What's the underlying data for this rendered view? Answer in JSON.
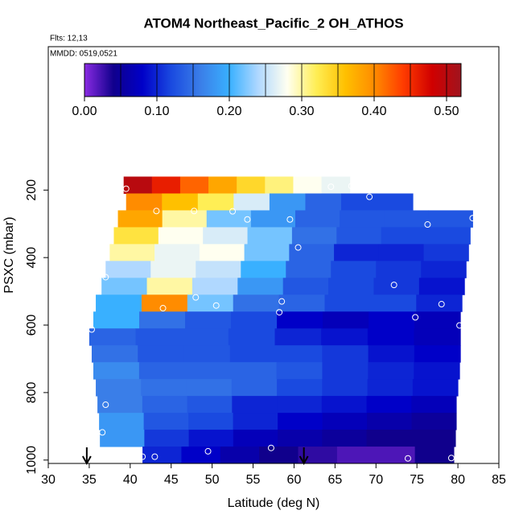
{
  "chart_data": {
    "type": "curtain",
    "title": "ATOM4 Northeast_Pacific_2 OH_ATHOS",
    "flights_note": "Flts: 12,13",
    "date_note": "MMDD: 0519,0521",
    "x_label": "Latitude (deg N)",
    "y_label": "PSXC (mbar)",
    "xlim": [
      30,
      85
    ],
    "xticks": [
      30,
      35,
      40,
      45,
      50,
      55,
      60,
      65,
      70,
      75,
      80,
      85
    ],
    "ylim": [
      1010,
      -225
    ],
    "yticks": [
      200,
      400,
      600,
      800,
      1000
    ],
    "colorbar": {
      "lim": [
        0,
        0.52
      ],
      "colors": [
        "#8a2be2",
        "#10008c",
        "#0000c8",
        "#1a4ae0",
        "#3a7ee8",
        "#39b0ff",
        "#b0d8ff",
        "#fffff0",
        "#ffee55",
        "#ffc000",
        "#ff8c00",
        "#ff3c00",
        "#d00000",
        "#a0141e"
      ],
      "ticks": [
        {
          "value": 0,
          "label": "0.00"
        },
        {
          "value": 0.1,
          "label": "0.10"
        },
        {
          "value": 0.2,
          "label": "0.20"
        },
        {
          "value": 0.3,
          "label": "0.30"
        },
        {
          "value": 0.4,
          "label": "0.40"
        },
        {
          "value": 0.5,
          "label": "0.50"
        }
      ],
      "lines": [
        0.05,
        0.1,
        0.15,
        0.2,
        0.25,
        0.3,
        0.35,
        0.4,
        0.45,
        0.5
      ]
    },
    "rows": [
      {
        "pressure": [
          160,
          210
        ],
        "lat": [
          39.2,
          66.8
        ],
        "values": [
          0.5,
          0.46,
          0.42,
          0.38,
          0.34,
          0.31,
          0.28,
          0.27
        ]
      },
      {
        "pressure": [
          210,
          260
        ],
        "lat": [
          39.5,
          74.5
        ],
        "values": [
          0.4,
          0.36,
          0.32,
          0.26,
          0.18,
          0.14,
          0.12,
          0.12
        ]
      },
      {
        "pressure": [
          260,
          310
        ],
        "lat": [
          38.5,
          81.8
        ],
        "values": [
          0.38,
          0.3,
          0.22,
          0.18,
          0.14,
          0.13,
          0.13,
          0.13
        ]
      },
      {
        "pressure": [
          310,
          360
        ],
        "lat": [
          38,
          81.5
        ],
        "values": [
          0.33,
          0.28,
          0.26,
          0.22,
          0.15,
          0.13,
          0.12,
          0.12
        ]
      },
      {
        "pressure": [
          360,
          410
        ],
        "lat": [
          37.5,
          81.3
        ],
        "values": [
          0.3,
          0.27,
          0.28,
          0.22,
          0.14,
          0.1,
          0.1,
          0.11
        ]
      },
      {
        "pressure": [
          410,
          460
        ],
        "lat": [
          37,
          81
        ],
        "values": [
          0.24,
          0.27,
          0.25,
          0.2,
          0.14,
          0.12,
          0.11,
          0.1
        ]
      },
      {
        "pressure": [
          460,
          510
        ],
        "lat": [
          36.5,
          80.8
        ],
        "values": [
          0.22,
          0.3,
          0.24,
          0.18,
          0.13,
          0.12,
          0.11,
          0.09
        ]
      },
      {
        "pressure": [
          510,
          560
        ],
        "lat": [
          35.8,
          80.5
        ],
        "values": [
          0.2,
          0.4,
          0.22,
          0.15,
          0.14,
          0.12,
          0.12,
          0.1
        ]
      },
      {
        "pressure": [
          560,
          610
        ],
        "lat": [
          35.5,
          80.3
        ],
        "values": [
          0.2,
          0.15,
          0.13,
          0.12,
          0.08,
          0.07,
          0.08,
          0.07
        ]
      },
      {
        "pressure": [
          610,
          660
        ],
        "lat": [
          35,
          80.3
        ],
        "values": [
          0.14,
          0.13,
          0.13,
          0.12,
          0.1,
          0.09,
          0.08,
          0.07
        ]
      },
      {
        "pressure": [
          660,
          710
        ],
        "lat": [
          35.3,
          80.3
        ],
        "values": [
          0.15,
          0.13,
          0.13,
          0.12,
          0.12,
          0.11,
          0.09,
          0.08
        ]
      },
      {
        "pressure": [
          710,
          760
        ],
        "lat": [
          35.5,
          80.2
        ],
        "values": [
          0.17,
          0.14,
          0.14,
          0.14,
          0.13,
          0.11,
          0.1,
          0.09
        ]
      },
      {
        "pressure": [
          760,
          810
        ],
        "lat": [
          35.8,
          80
        ],
        "values": [
          0.16,
          0.15,
          0.15,
          0.14,
          0.12,
          0.11,
          0.1,
          0.09
        ]
      },
      {
        "pressure": [
          810,
          860
        ],
        "lat": [
          36,
          79.8
        ],
        "values": [
          0.16,
          0.14,
          0.13,
          0.1,
          0.1,
          0.09,
          0.08,
          0.07
        ]
      },
      {
        "pressure": [
          860,
          910
        ],
        "lat": [
          36.2,
          79.8
        ],
        "values": [
          0.18,
          0.13,
          0.12,
          0.1,
          0.08,
          0.07,
          0.06,
          0.05
        ]
      },
      {
        "pressure": [
          910,
          960
        ],
        "lat": [
          36.3,
          79.7
        ],
        "values": [
          0.18,
          0.11,
          0.09,
          0.07,
          0.06,
          0.05,
          0.04,
          0.04
        ]
      },
      {
        "pressure": [
          960,
          1010
        ],
        "lat": [
          41.5,
          79.5
        ],
        "values": [
          0.1,
          0.08,
          0.06,
          0.04,
          0.03,
          0.02,
          0.02,
          0.04
        ]
      }
    ],
    "points": {
      "lat": [
        39.5,
        64.5,
        67,
        69.2,
        43.2,
        47.8,
        52.5,
        54.3,
        59.5,
        76.3,
        81.8,
        60.5,
        37,
        72.2,
        48,
        58.5,
        44,
        50.5,
        78,
        58.2,
        74.8,
        35.3,
        80.2,
        37,
        36.6,
        41.5,
        43,
        49.5,
        57.2,
        73.9,
        79.2
      ],
      "pressure": [
        196,
        190,
        188,
        220,
        262,
        262,
        263,
        287,
        287,
        302,
        283,
        370,
        458,
        481,
        518,
        530,
        550,
        542,
        538,
        562,
        577,
        613,
        601,
        836,
        918,
        990,
        990,
        974,
        964,
        995,
        994
      ],
      "color": "#ffffff"
    },
    "arrows": [
      34.7,
      61.2
    ]
  }
}
